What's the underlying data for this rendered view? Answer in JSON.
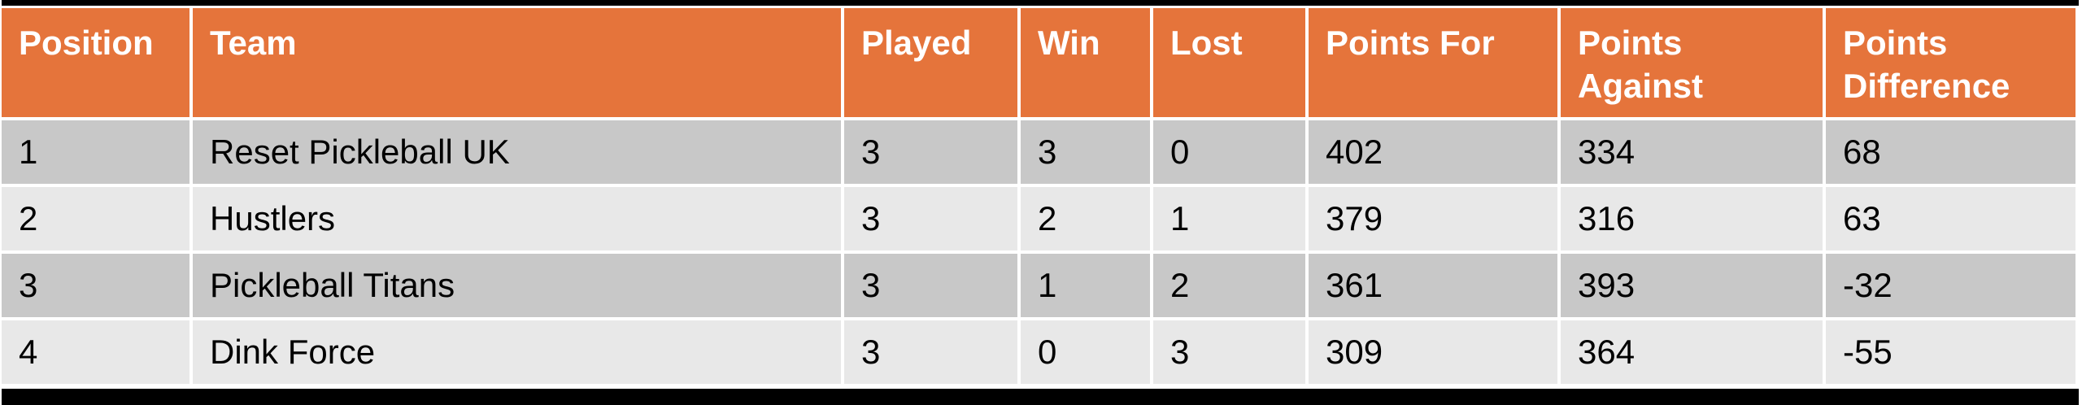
{
  "chart_data": {
    "type": "table",
    "columns": [
      "Position",
      "Team",
      "Played",
      "Win",
      "Lost",
      "Points For",
      "Points Against",
      "Points Difference"
    ],
    "rows": [
      [
        "1",
        "Reset Pickleball UK",
        "3",
        "3",
        "0",
        "402",
        "334",
        "68"
      ],
      [
        "2",
        "Hustlers",
        "3",
        "2",
        "1",
        "379",
        "316",
        "63"
      ],
      [
        "3",
        "Pickleball Titans",
        "3",
        "1",
        "2",
        "361",
        "393",
        "-32"
      ],
      [
        "4",
        "Dink Force",
        "3",
        "0",
        "3",
        "309",
        "364",
        "-55"
      ]
    ],
    "layout_hints": {
      "header_fill": "#E5743B",
      "header_text_color": "#FFFFFF",
      "band_dark": "#C8C8C8",
      "band_light": "#E8E8E8",
      "outer_border_color": "#000000",
      "cell_gap_color": "#FFFFFF",
      "banded_rows": true,
      "text_align": "left"
    }
  }
}
